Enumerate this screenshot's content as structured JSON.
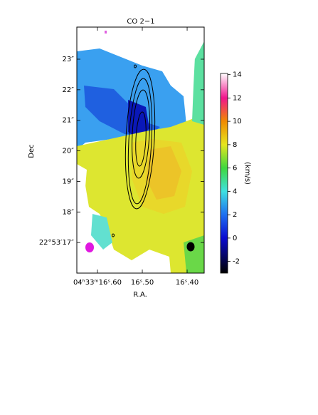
{
  "chart_data": {
    "type": "velocity-map",
    "title": "CO 2−1",
    "xlabel": "R.A.",
    "ylabel": "Dec",
    "xlim": [
      16.646,
      16.362
    ],
    "xticks": [
      {
        "value": 16.6,
        "label": "04ʰ33ᵐ16ˢ.60"
      },
      {
        "value": 16.5,
        "label": "16ˢ.50"
      },
      {
        "value": 16.4,
        "label": "16ˢ.40"
      }
    ],
    "ylim": [
      16.0,
      24.05
    ],
    "yticks": [
      {
        "value": 17,
        "label": "22°53′17″"
      },
      {
        "value": 18,
        "label": "18″"
      },
      {
        "value": 19,
        "label": "19″"
      },
      {
        "value": 20,
        "label": "20″"
      },
      {
        "value": 21,
        "label": "21″"
      },
      {
        "value": 22,
        "label": "22″"
      },
      {
        "value": 23,
        "label": "23″"
      }
    ],
    "colorbar_label": "(km/s)",
    "clim": [
      -3,
      14.1
    ],
    "cticks": [
      -2,
      0,
      2,
      4,
      6,
      8,
      10,
      12,
      14
    ],
    "colormap": [
      {
        "value": -3,
        "color": "#000000"
      },
      {
        "value": 0,
        "color": "#0a0ad0"
      },
      {
        "value": 2,
        "color": "#1e6ff0"
      },
      {
        "value": 4,
        "color": "#3ee0e0"
      },
      {
        "value": 6,
        "color": "#3ed83e"
      },
      {
        "value": 8,
        "color": "#e6e61e"
      },
      {
        "value": 10,
        "color": "#f08a00"
      },
      {
        "value": 12,
        "color": "#f0148c"
      },
      {
        "value": 14.1,
        "color": "#ffffff"
      }
    ]
  }
}
